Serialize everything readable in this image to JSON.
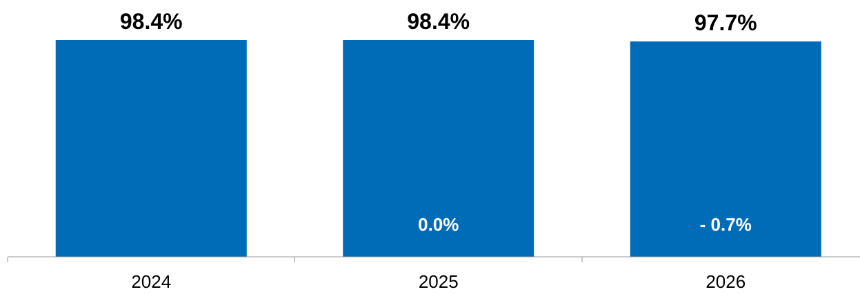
{
  "chart_data": {
    "type": "bar",
    "categories": [
      "2024",
      "2025",
      "2026"
    ],
    "values": [
      98.4,
      98.4,
      97.7
    ],
    "value_labels": [
      "98.4%",
      "98.4%",
      "97.7%"
    ],
    "change_labels": [
      "",
      "0.0%",
      "- 0.7%"
    ],
    "title": "",
    "xlabel": "",
    "ylabel": "",
    "ylim": [
      0,
      98.4
    ],
    "grid": false,
    "legend": "none",
    "colors": {
      "bar": "#006BB6",
      "axis": "#999999",
      "value_text": "#000000",
      "change_text": "#FFFFFF"
    }
  }
}
